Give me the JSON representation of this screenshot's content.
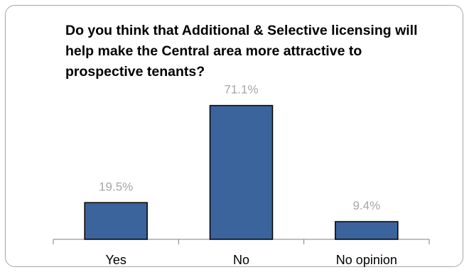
{
  "chart_data": {
    "type": "bar",
    "title": "Do you think that Additional & Selective licensing will help make the Central area more attractive to prospective tenants?",
    "categories": [
      "Yes",
      "No",
      "No opinion"
    ],
    "values": [
      19.5,
      71.1,
      9.4
    ],
    "data_labels": [
      "19.5%",
      "71.1%",
      "9.4%"
    ],
    "unit": "%",
    "ylim": [
      0,
      80
    ],
    "grid": false,
    "legend": "none",
    "colors": {
      "bar_fill": "#3b649c",
      "bar_stroke": "#000000",
      "data_label": "#a6a6a6",
      "axis": "#7f7f7f"
    }
  }
}
